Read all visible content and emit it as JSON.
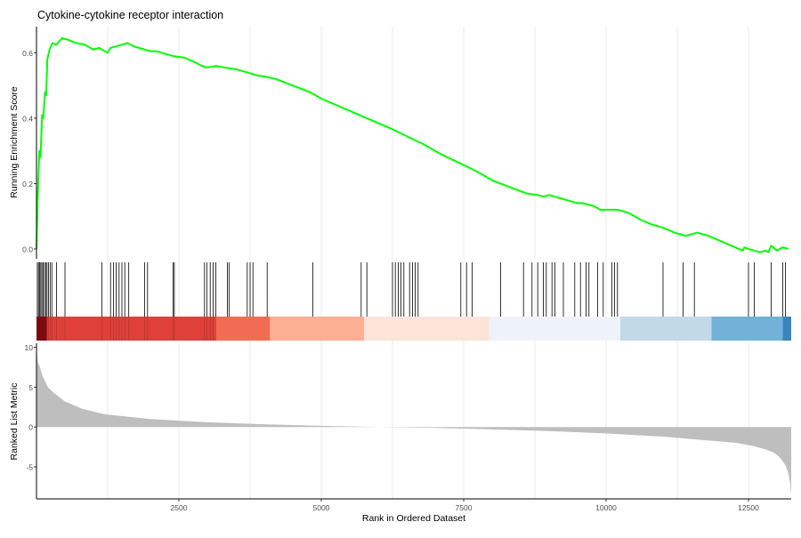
{
  "chart_data": {
    "type": "line",
    "title": "Cytokine-cytokine receptor interaction",
    "xlabel": "Rank in Ordered Dataset",
    "x_ticks": [
      2500,
      5000,
      7500,
      10000,
      12500
    ],
    "xlim": [
      0,
      13250
    ],
    "grid": true,
    "panels": {
      "enrichment": {
        "ylabel": "Running Enrichment Score",
        "ylim": [
          -0.03,
          0.68
        ],
        "y_ticks": [
          0.0,
          0.2,
          0.4,
          0.6
        ],
        "y_tick_labels": [
          "0.0",
          "0.2",
          "0.4",
          "0.6"
        ],
        "line_color": "#00ff00",
        "series": [
          {
            "x": [
              0,
              20,
              50,
              70,
              100,
              120,
              150,
              170,
              190,
              230,
              280,
              350,
              450,
              550,
              700,
              850,
              1000,
              1100,
              1200,
              1250,
              1300,
              1400,
              1500,
              1600,
              1700,
              1800,
              1900,
              2000,
              2100,
              2200,
              2400,
              2600,
              2800,
              2900,
              3000,
              3150,
              3300,
              3500,
              3700,
              3800,
              3900,
              4000,
              4200,
              4500,
              4800,
              5000,
              5200,
              5400,
              5600,
              5800,
              6000,
              6200,
              6500,
              6800,
              7100,
              7400,
              7700,
              8000,
              8300,
              8600,
              8800,
              8900,
              9000,
              9100,
              9200,
              9300,
              9400,
              9500,
              9600,
              9700,
              9800,
              9900,
              10000,
              10100,
              10200,
              10300,
              10400,
              10500,
              10600,
              10800,
              11000,
              11200,
              11400,
              11600,
              11700,
              11800,
              12000,
              12200,
              12400,
              12430,
              12500,
              12600,
              12700,
              12800,
              12850,
              12900,
              13000,
              13100,
              13200
            ],
            "y": [
              0.0,
              0.15,
              0.3,
              0.28,
              0.41,
              0.4,
              0.48,
              0.47,
              0.58,
              0.61,
              0.63,
              0.625,
              0.645,
              0.64,
              0.63,
              0.625,
              0.61,
              0.615,
              0.605,
              0.6,
              0.615,
              0.62,
              0.625,
              0.63,
              0.62,
              0.615,
              0.61,
              0.605,
              0.605,
              0.6,
              0.59,
              0.585,
              0.57,
              0.56,
              0.555,
              0.56,
              0.555,
              0.55,
              0.54,
              0.535,
              0.53,
              0.528,
              0.52,
              0.5,
              0.48,
              0.46,
              0.445,
              0.43,
              0.415,
              0.4,
              0.385,
              0.37,
              0.345,
              0.32,
              0.29,
              0.265,
              0.24,
              0.21,
              0.19,
              0.17,
              0.165,
              0.16,
              0.165,
              0.16,
              0.155,
              0.15,
              0.145,
              0.14,
              0.14,
              0.135,
              0.13,
              0.12,
              0.12,
              0.12,
              0.12,
              0.115,
              0.11,
              0.1,
              0.09,
              0.075,
              0.065,
              0.05,
              0.04,
              0.05,
              0.045,
              0.04,
              0.025,
              0.01,
              -0.005,
              0.005,
              0.0,
              -0.005,
              -0.01,
              -0.005,
              -0.01,
              0.01,
              -0.005,
              0.005,
              0.0
            ]
          }
        ]
      },
      "hits": {
        "positions": [
          15,
          35,
          55,
          75,
          95,
          115,
          140,
          165,
          185,
          210,
          240,
          270,
          350,
          500,
          1150,
          1300,
          1350,
          1400,
          1450,
          1500,
          1550,
          1620,
          1900,
          1950,
          2400,
          2420,
          2950,
          2990,
          3050,
          3100,
          3150,
          3350,
          3380,
          3700,
          3750,
          3800,
          4050,
          4850,
          5700,
          5800,
          6250,
          6300,
          6350,
          6400,
          6450,
          6550,
          6600,
          6650,
          6700,
          7450,
          7550,
          7650,
          8150,
          8550,
          8700,
          8800,
          8900,
          8950,
          9050,
          9100,
          9250,
          9450,
          9550,
          9650,
          9700,
          9850,
          9950,
          10100,
          10150,
          10200,
          11000,
          11350,
          11550,
          12500,
          12600,
          12900,
          13100,
          13150
        ]
      },
      "color_bands": [
        {
          "from": 0,
          "to": 180,
          "color": "#8b0c13"
        },
        {
          "from": 180,
          "to": 3150,
          "color": "#e0403a"
        },
        {
          "from": 3150,
          "to": 4100,
          "color": "#f26c53"
        },
        {
          "from": 4100,
          "to": 5750,
          "color": "#fcaf93"
        },
        {
          "from": 5750,
          "to": 7950,
          "color": "#fde4d9"
        },
        {
          "from": 7950,
          "to": 10250,
          "color": "#eef3fb"
        },
        {
          "from": 10250,
          "to": 11850,
          "color": "#c2d9e8"
        },
        {
          "from": 11850,
          "to": 13100,
          "color": "#72b2d8"
        },
        {
          "from": 13100,
          "to": 13250,
          "color": "#3a84bd"
        }
      ],
      "ranked": {
        "ylabel": "Ranked List Metric",
        "ylim": [
          -9,
          10.5
        ],
        "y_ticks": [
          -5,
          0,
          5,
          10
        ],
        "y_tick_labels": [
          "-5",
          "0",
          "5",
          "10"
        ],
        "fill_color": "#bebebe",
        "x": [
          0,
          20,
          60,
          100,
          200,
          300,
          500,
          800,
          1200,
          2000,
          3000,
          4000,
          5000,
          6000,
          7000,
          8000,
          9000,
          10000,
          10500,
          11000,
          11500,
          12000,
          12300,
          12600,
          12800,
          12950,
          13050,
          13150,
          13200,
          13230,
          13250
        ],
        "y": [
          10.2,
          8.2,
          7.5,
          6.5,
          5.0,
          4.3,
          3.2,
          2.3,
          1.6,
          1.0,
          0.6,
          0.35,
          0.15,
          0.0,
          -0.1,
          -0.3,
          -0.5,
          -0.8,
          -1.0,
          -1.2,
          -1.5,
          -1.8,
          -2.0,
          -2.4,
          -2.8,
          -3.2,
          -3.8,
          -4.8,
          -5.8,
          -7.0,
          -8.6
        ]
      }
    }
  }
}
